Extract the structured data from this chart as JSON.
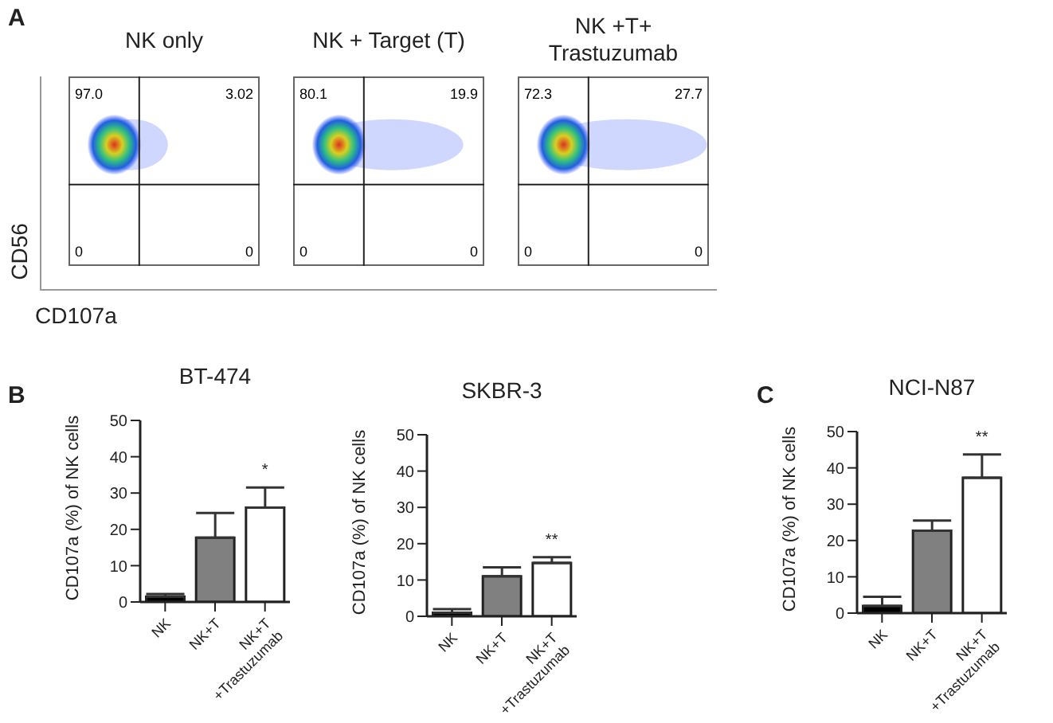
{
  "chart_data": [
    {
      "type": "other",
      "title": "NK only",
      "xlabel": "CD107a",
      "ylabel": "CD56",
      "annotations": [
        "A",
        "97.0",
        "3.02",
        "0",
        "0"
      ]
    },
    {
      "type": "other",
      "title": "NK + Target (T)",
      "annotations": [
        "80.1",
        "19.9",
        "0",
        "0"
      ]
    },
    {
      "type": "other",
      "title": "NK +T+\nTrastuzumab",
      "annotations": [
        "72.3",
        "27.7",
        "0",
        "0"
      ]
    },
    {
      "type": "bar",
      "title": "BT-474",
      "ylabel": "CD107a (%) of NK cells",
      "categories": [
        "NK",
        "NK+T",
        "NK+T\n+Trastuzumab"
      ],
      "values": [
        1.5,
        17.7,
        26
      ],
      "colors": [
        "#000000",
        "#808080",
        "#ffffff"
      ],
      "errors": [
        [
          1.5,
          2.2
        ],
        [
          17.7,
          24.5
        ],
        [
          26,
          31.5
        ]
      ],
      "ylim": [
        0,
        50
      ],
      "yticks": [
        0,
        10,
        20,
        30,
        40,
        50
      ],
      "annotations": [
        "B",
        "*"
      ]
    },
    {
      "type": "bar",
      "title": "SKBR-3",
      "ylabel": "CD107a (%) of NK cells",
      "categories": [
        "NK",
        "NK+T",
        "NK+T\n+Trastuzumab"
      ],
      "values": [
        1,
        11,
        14.7
      ],
      "colors": [
        "#000000",
        "#808080",
        "#ffffff"
      ],
      "errors": [
        [
          1,
          2
        ],
        [
          11,
          13.5
        ],
        [
          14.7,
          16.3
        ]
      ],
      "ylim": [
        0,
        50
      ],
      "yticks": [
        0,
        10,
        20,
        30,
        40,
        50
      ],
      "annotations": [
        "**"
      ]
    },
    {
      "type": "bar",
      "title": "NCI-N87",
      "ylabel": "CD107a (%) of NK cells",
      "categories": [
        "NK",
        "NK+T",
        "NK+T\n+Trastuzumab"
      ],
      "values": [
        2,
        22.7,
        37.3
      ],
      "colors": [
        "#000000",
        "#808080",
        "#ffffff"
      ],
      "errors": [
        [
          2,
          4.5
        ],
        [
          22.7,
          25.5
        ],
        [
          37.3,
          43.7
        ]
      ],
      "ylim": [
        0,
        50
      ],
      "yticks": [
        0,
        10,
        20,
        30,
        40,
        50
      ],
      "annotations": [
        "C",
        "**"
      ]
    }
  ]
}
